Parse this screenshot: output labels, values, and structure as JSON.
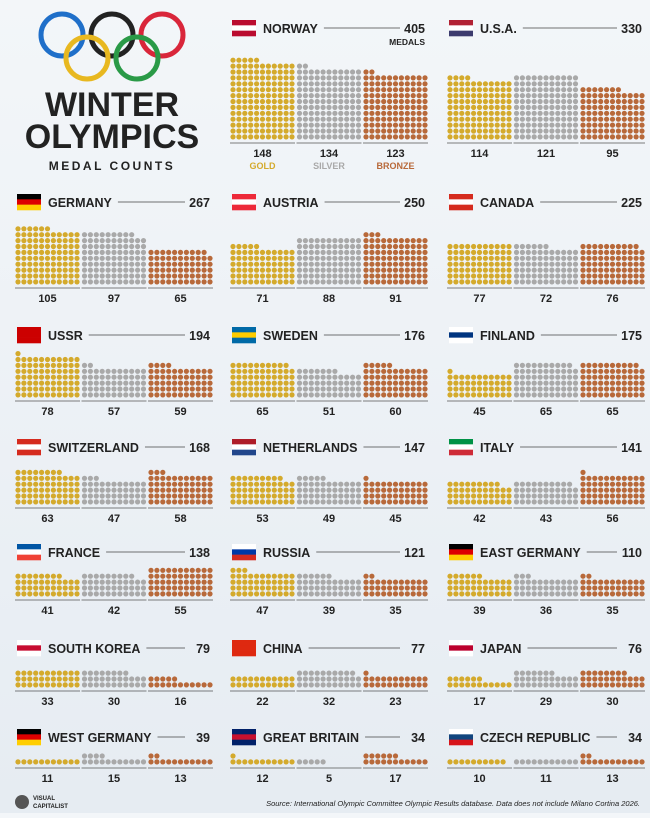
{
  "header": {
    "title_1": "WINTER",
    "title_2": "OLYMPICS",
    "subtitle": "MEDAL COUNTS"
  },
  "legend": [
    "GOLD",
    "SILVER",
    "BRONZE"
  ],
  "medals_label": "MEDALS",
  "countries": [
    {
      "name": "NORWAY",
      "total": 405,
      "gold": 148,
      "silver": 134,
      "bronze": 123
    },
    {
      "name": "U.S.A.",
      "total": 330,
      "gold": 114,
      "silver": 121,
      "bronze": 95
    },
    {
      "name": "GERMANY",
      "total": 267,
      "gold": 105,
      "silver": 97,
      "bronze": 65
    },
    {
      "name": "AUSTRIA",
      "total": 250,
      "gold": 71,
      "silver": 88,
      "bronze": 91
    },
    {
      "name": "CANADA",
      "total": 225,
      "gold": 77,
      "silver": 72,
      "bronze": 76
    },
    {
      "name": "USSR",
      "total": 194,
      "gold": 78,
      "silver": 57,
      "bronze": 59
    },
    {
      "name": "SWEDEN",
      "total": 176,
      "gold": 65,
      "silver": 51,
      "bronze": 60
    },
    {
      "name": "FINLAND",
      "total": 175,
      "gold": 45,
      "silver": 65,
      "bronze": 65
    },
    {
      "name": "SWITZERLAND",
      "total": 168,
      "gold": 63,
      "silver": 47,
      "bronze": 58
    },
    {
      "name": "NETHERLANDS",
      "total": 147,
      "gold": 53,
      "silver": 49,
      "bronze": 45
    },
    {
      "name": "ITALY",
      "total": 141,
      "gold": 42,
      "silver": 43,
      "bronze": 56
    },
    {
      "name": "FRANCE",
      "total": 138,
      "gold": 41,
      "silver": 42,
      "bronze": 55
    },
    {
      "name": "RUSSIA",
      "total": 121,
      "gold": 47,
      "silver": 39,
      "bronze": 35
    },
    {
      "name": "EAST GERMANY",
      "total": 110,
      "gold": 39,
      "silver": 36,
      "bronze": 35
    },
    {
      "name": "SOUTH KOREA",
      "total": 79,
      "gold": 33,
      "silver": 30,
      "bronze": 16
    },
    {
      "name": "CHINA",
      "total": 77,
      "gold": 22,
      "silver": 32,
      "bronze": 23
    },
    {
      "name": "JAPAN",
      "total": 76,
      "gold": 17,
      "silver": 29,
      "bronze": 30
    },
    {
      "name": "WEST GERMANY",
      "total": 39,
      "gold": 11,
      "silver": 15,
      "bronze": 13
    },
    {
      "name": "GREAT BRITAIN",
      "total": 34,
      "gold": 12,
      "silver": 5,
      "bronze": 17
    },
    {
      "name": "CZECH REPUBLIC",
      "total": 34,
      "gold": 10,
      "silver": 11,
      "bronze": 13
    }
  ],
  "source": "Source: International Olympic Committee Olympic Results database. Data does not include Milano Cortina 2026.",
  "brand_1": "VISUAL",
  "brand_2": "CAPITALIST"
}
